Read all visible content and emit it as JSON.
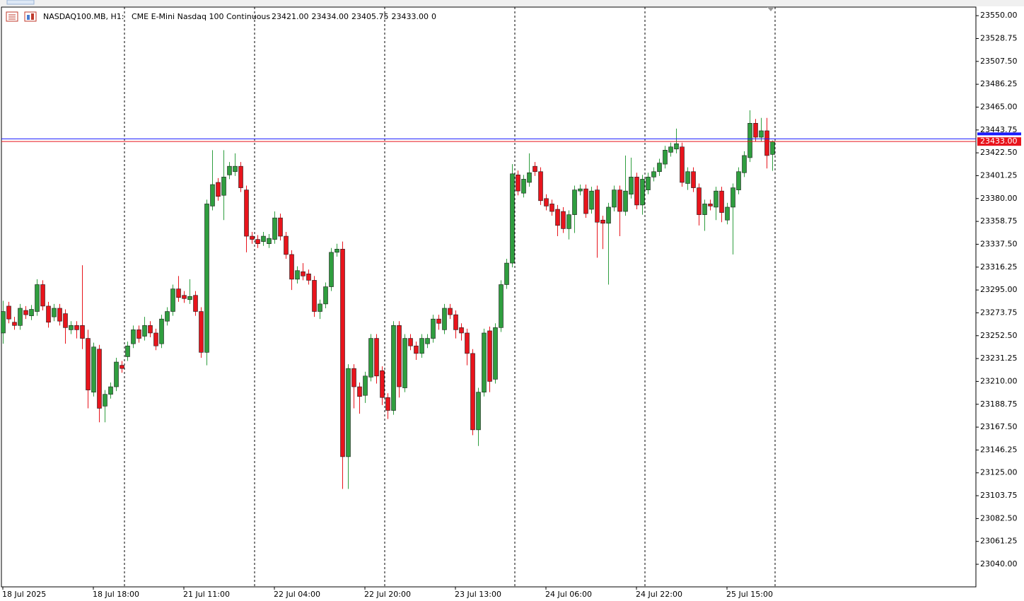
{
  "chart_data": {
    "type": "candlestick",
    "symbol": "NASDAQ100.MB, H1:",
    "description": "CME E-Mini Nasdaq 100 Continuous",
    "header_values": [
      "23421.00",
      "23434.00",
      "23405.75",
      "23433.00",
      "0"
    ],
    "up_color": "#2f9e3f",
    "down_color": "#e8141c",
    "bid": {
      "value": 23433,
      "label": "23433.00"
    },
    "bid_color": "#e8141c",
    "ask": 23435.5,
    "ask_color": "#1a1aff",
    "ylim": [
      23019,
      23558
    ],
    "yticks": [
      {
        "value": 23550,
        "label": "23550.00"
      },
      {
        "value": 23528.75,
        "label": "23528.75"
      },
      {
        "value": 23507.5,
        "label": "23507.50"
      },
      {
        "value": 23486.25,
        "label": "23486.25"
      },
      {
        "value": 23465,
        "label": "23465.00"
      },
      {
        "value": 23443.75,
        "label": "23443.75"
      },
      {
        "value": 23422.5,
        "label": "23422.50"
      },
      {
        "value": 23401.25,
        "label": "23401.25"
      },
      {
        "value": 23380,
        "label": "23380.00"
      },
      {
        "value": 23358.75,
        "label": "23358.75"
      },
      {
        "value": 23337.5,
        "label": "23337.50"
      },
      {
        "value": 23316.25,
        "label": "23316.25"
      },
      {
        "value": 23295,
        "label": "23295.00"
      },
      {
        "value": 23273.75,
        "label": "23273.75"
      },
      {
        "value": 23252.5,
        "label": "23252.50"
      },
      {
        "value": 23231.25,
        "label": "23231.25"
      },
      {
        "value": 23210,
        "label": "23210.00"
      },
      {
        "value": 23188.75,
        "label": "23188.75"
      },
      {
        "value": 23167.5,
        "label": "23167.50"
      },
      {
        "value": 23146.25,
        "label": "23146.25"
      },
      {
        "value": 23125,
        "label": "23125.00"
      },
      {
        "value": 23103.75,
        "label": "23103.75"
      },
      {
        "value": 23082.5,
        "label": "23082.50"
      },
      {
        "value": 23061.25,
        "label": "23061.25"
      },
      {
        "value": 23040,
        "label": "23040.00"
      }
    ],
    "categories": [
      "18 Jul 2025",
      null,
      null,
      null,
      null,
      null,
      null,
      null,
      null,
      null,
      null,
      null,
      null,
      null,
      null,
      null,
      "18 Jul 18:00",
      null,
      null,
      null,
      null,
      null,
      null,
      null,
      null,
      null,
      null,
      null,
      null,
      null,
      null,
      null,
      "21 Jul 11:00",
      null,
      null,
      null,
      null,
      null,
      null,
      null,
      null,
      null,
      null,
      null,
      null,
      null,
      null,
      null,
      "22 Jul 04:00",
      null,
      null,
      null,
      null,
      null,
      null,
      null,
      null,
      null,
      null,
      null,
      null,
      null,
      null,
      null,
      "22 Jul 20:00",
      null,
      null,
      null,
      null,
      null,
      null,
      null,
      null,
      null,
      null,
      null,
      null,
      null,
      null,
      null,
      "23 Jul 13:00",
      null,
      null,
      null,
      null,
      null,
      null,
      null,
      null,
      null,
      null,
      null,
      null,
      null,
      null,
      null,
      "24 Jul 06:00",
      null,
      null,
      null,
      null,
      null,
      null,
      null,
      null,
      null,
      null,
      null,
      null,
      null,
      null,
      null,
      "24 Jul 22:00",
      null,
      null,
      null,
      null,
      null,
      null,
      null,
      null,
      null,
      null,
      null,
      null,
      null,
      null,
      null,
      "25 Jul 15:00",
      null,
      null,
      null,
      null,
      null,
      null,
      null,
      null
    ],
    "ohlc": [
      [
        23255,
        23285,
        23245,
        23275
      ],
      [
        23280,
        23284,
        23264,
        23268
      ],
      [
        23265,
        23270,
        23258,
        23262
      ],
      [
        23262,
        23282,
        23258,
        23278
      ],
      [
        23276,
        23280,
        23268,
        23272
      ],
      [
        23271,
        23281,
        23267,
        23277
      ],
      [
        23275,
        23305,
        23271,
        23300
      ],
      [
        23300,
        23304,
        23276,
        23280
      ],
      [
        23280,
        23284,
        23260,
        23265
      ],
      [
        23270,
        23282,
        23266,
        23278
      ],
      [
        23278,
        23282,
        23262,
        23266
      ],
      [
        23273,
        23277,
        23245,
        23260
      ],
      [
        23258,
        23266,
        23254,
        23262
      ],
      [
        23262,
        23266,
        23250,
        23258
      ],
      [
        23262,
        23318,
        23240,
        23250
      ],
      [
        23250,
        23258,
        23185,
        23202
      ],
      [
        23200,
        23246,
        23196,
        23242
      ],
      [
        23240,
        23244,
        23172,
        23185
      ],
      [
        23187,
        23202,
        23172,
        23198
      ],
      [
        23198,
        23209,
        23194,
        23205
      ],
      [
        23205,
        23232,
        23201,
        23228
      ],
      [
        23225,
        23229,
        23218,
        23222
      ],
      [
        23233,
        23247,
        23229,
        23243
      ],
      [
        23245,
        23262,
        23241,
        23258
      ],
      [
        23258,
        23262,
        23246,
        23250
      ],
      [
        23252,
        23270,
        23248,
        23262
      ],
      [
        23262,
        23266,
        23251,
        23255
      ],
      [
        23255,
        23259,
        23239,
        23243
      ],
      [
        23245,
        23272,
        23241,
        23268
      ],
      [
        23266,
        23279,
        23262,
        23275
      ],
      [
        23275,
        23300,
        23271,
        23296
      ],
      [
        23296,
        23308,
        23284,
        23288
      ],
      [
        23290,
        23294,
        23283,
        23287
      ],
      [
        23286,
        23305,
        23282,
        23289
      ],
      [
        23290,
        23294,
        23271,
        23275
      ],
      [
        23275,
        23279,
        23232,
        23237
      ],
      [
        23237,
        23379,
        23225,
        23375
      ],
      [
        23373,
        23425,
        23369,
        23393
      ],
      [
        23395,
        23399,
        23378,
        23382
      ],
      [
        23383,
        23425,
        23360,
        23400
      ],
      [
        23402,
        23414,
        23398,
        23410
      ],
      [
        23405,
        23422,
        23401,
        23410
      ],
      [
        23410,
        23414,
        23386,
        23390
      ],
      [
        23388,
        23392,
        23330,
        23345
      ],
      [
        23345,
        23349,
        23338,
        23342
      ],
      [
        23342,
        23346,
        23334,
        23338
      ],
      [
        23340,
        23349,
        23336,
        23345
      ],
      [
        23338,
        23347,
        23334,
        23343
      ],
      [
        23342,
        23368,
        23338,
        23362
      ],
      [
        23362,
        23366,
        23341,
        23345
      ],
      [
        23345,
        23349,
        23324,
        23328
      ],
      [
        23328,
        23332,
        23295,
        23305
      ],
      [
        23305,
        23317,
        23301,
        23313
      ],
      [
        23312,
        23320,
        23304,
        23308
      ],
      [
        23310,
        23314,
        23300,
        23304
      ],
      [
        23304,
        23308,
        23270,
        23275
      ],
      [
        23275,
        23286,
        23268,
        23282
      ],
      [
        23282,
        23302,
        23278,
        23298
      ],
      [
        23298,
        23334,
        23294,
        23330
      ],
      [
        23330,
        23338,
        23326,
        23333
      ],
      [
        23333,
        23340,
        23110,
        23140
      ],
      [
        23140,
        23226,
        23110,
        23222
      ],
      [
        23222,
        23226,
        23185,
        23205
      ],
      [
        23205,
        23209,
        23180,
        23196
      ],
      [
        23197,
        23219,
        23190,
        23215
      ],
      [
        23214,
        23254,
        23210,
        23250
      ],
      [
        23250,
        23254,
        23208,
        23215
      ],
      [
        23220,
        23224,
        23188,
        23195
      ],
      [
        23195,
        23199,
        23175,
        23183
      ],
      [
        23183,
        23266,
        23179,
        23262
      ],
      [
        23262,
        23266,
        23195,
        23205
      ],
      [
        23204,
        23254,
        23200,
        23250
      ],
      [
        23250,
        23254,
        23239,
        23243
      ],
      [
        23243,
        23247,
        23230,
        23236
      ],
      [
        23236,
        23254,
        23232,
        23250
      ],
      [
        23245,
        23254,
        23241,
        23250
      ],
      [
        23250,
        23272,
        23246,
        23268
      ],
      [
        23268,
        23272,
        23258,
        23264
      ],
      [
        23258,
        23282,
        23254,
        23278
      ],
      [
        23278,
        23282,
        23268,
        23272
      ],
      [
        23272,
        23276,
        23250,
        23258
      ],
      [
        23260,
        23264,
        23248,
        23255
      ],
      [
        23255,
        23259,
        23225,
        23236
      ],
      [
        23236,
        23240,
        23160,
        23165
      ],
      [
        23165,
        23204,
        23150,
        23200
      ],
      [
        23200,
        23259,
        23196,
        23255
      ],
      [
        23257,
        23261,
        23200,
        23210
      ],
      [
        23212,
        23264,
        23208,
        23260
      ],
      [
        23260,
        23304,
        23256,
        23300
      ],
      [
        23300,
        23324,
        23296,
        23320
      ],
      [
        23320,
        23412,
        23316,
        23403
      ],
      [
        23402,
        23406,
        23383,
        23387
      ],
      [
        23385,
        23402,
        23381,
        23398
      ],
      [
        23395,
        23422,
        23391,
        23404
      ],
      [
        23410,
        23414,
        23401,
        23405
      ],
      [
        23405,
        23409,
        23374,
        23378
      ],
      [
        23380,
        23384,
        23369,
        23373
      ],
      [
        23375,
        23379,
        23364,
        23368
      ],
      [
        23370,
        23374,
        23345,
        23355
      ],
      [
        23368,
        23372,
        23348,
        23352
      ],
      [
        23352,
        23369,
        23342,
        23365
      ],
      [
        23365,
        23392,
        23348,
        23388
      ],
      [
        23387,
        23393,
        23383,
        23389
      ],
      [
        23389,
        23393,
        23362,
        23366
      ],
      [
        23370,
        23391,
        23366,
        23387
      ],
      [
        23388,
        23392,
        23325,
        23358
      ],
      [
        23360,
        23364,
        23333,
        23357
      ],
      [
        23357,
        23376,
        23300,
        23372
      ],
      [
        23372,
        23392,
        23368,
        23388
      ],
      [
        23388,
        23392,
        23345,
        23368
      ],
      [
        23368,
        23420,
        23364,
        23387
      ],
      [
        23384,
        23418,
        23380,
        23400
      ],
      [
        23400,
        23404,
        23370,
        23374
      ],
      [
        23374,
        23402,
        23365,
        23398
      ],
      [
        23388,
        23404,
        23384,
        23400
      ],
      [
        23400,
        23409,
        23396,
        23405
      ],
      [
        23405,
        23417,
        23401,
        23413
      ],
      [
        23412,
        23429,
        23408,
        23425
      ],
      [
        23423,
        23432,
        23419,
        23428
      ],
      [
        23426,
        23445,
        23422,
        23431
      ],
      [
        23428,
        23432,
        23391,
        23395
      ],
      [
        23394,
        23409,
        23388,
        23405
      ],
      [
        23405,
        23409,
        23386,
        23390
      ],
      [
        23390,
        23394,
        23355,
        23365
      ],
      [
        23365,
        23379,
        23350,
        23375
      ],
      [
        23375,
        23379,
        23369,
        23373
      ],
      [
        23372,
        23391,
        23360,
        23387
      ],
      [
        23387,
        23391,
        23358,
        23367
      ],
      [
        23360,
        23376,
        23356,
        23372
      ],
      [
        23372,
        23394,
        23328,
        23390
      ],
      [
        23388,
        23409,
        23384,
        23405
      ],
      [
        23404,
        23424,
        23400,
        23420
      ],
      [
        23418,
        23462,
        23414,
        23450
      ],
      [
        23450,
        23454,
        23433,
        23437
      ],
      [
        23437,
        23455,
        23433,
        23443
      ],
      [
        23443,
        23455,
        23408,
        23420
      ],
      [
        23421,
        23434,
        23405.75,
        23433
      ]
    ]
  }
}
